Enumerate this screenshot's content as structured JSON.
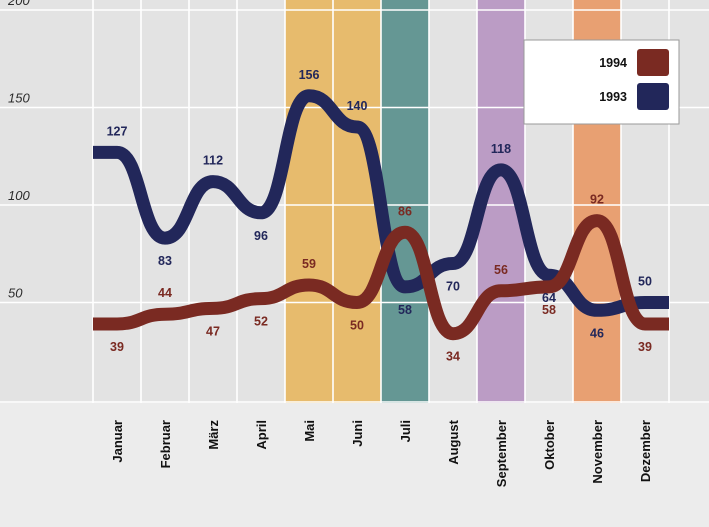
{
  "chart_data": {
    "type": "line",
    "categories": [
      "Januar",
      "Februar",
      "März",
      "April",
      "Mai",
      "Juni",
      "Juli",
      "August",
      "September",
      "Oktober",
      "November",
      "Dezember"
    ],
    "series": [
      {
        "name": "1993",
        "color": "#22275a",
        "values": [
          127,
          83,
          112,
          96,
          156,
          140,
          58,
          70,
          118,
          64,
          46,
          50
        ]
      },
      {
        "name": "1994",
        "color": "#7a2a22",
        "values": [
          39,
          44,
          47,
          52,
          59,
          50,
          86,
          34,
          56,
          58,
          92,
          39
        ]
      }
    ],
    "legend": {
      "position": "top-right",
      "order": [
        "1994",
        "1993"
      ]
    },
    "yticks": [
      "200",
      "150",
      "100",
      "50"
    ],
    "ylim": [
      0,
      200
    ],
    "grid": true,
    "highlighted_months": [
      {
        "month": "Mai",
        "color": "#e8b458"
      },
      {
        "month": "Juni",
        "color": "#e8b458"
      },
      {
        "month": "Juli",
        "color": "#4f8a86"
      },
      {
        "month": "September",
        "color": "#b48fbf"
      },
      {
        "month": "November",
        "color": "#e9945e"
      }
    ],
    "background_color": "#e3e3e3"
  }
}
